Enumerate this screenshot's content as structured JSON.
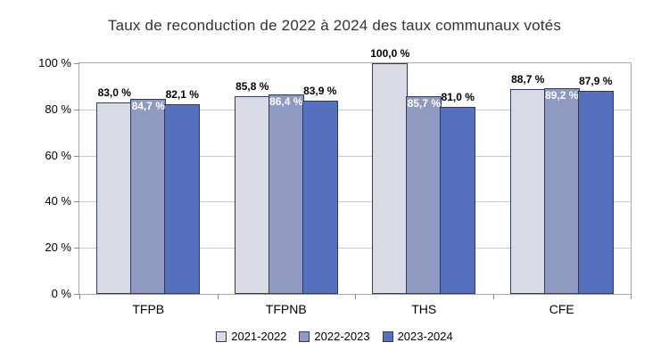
{
  "chart": {
    "title": "Taux de reconduction de 2022 à 2024 des taux communaux votés"
  },
  "chart_data": {
    "type": "bar",
    "title": "Taux de reconduction de 2022 à 2024 des taux communaux votés",
    "categories": [
      "TFPB",
      "TFPNB",
      "THS",
      "CFE"
    ],
    "series": [
      {
        "name": "2021-2022",
        "color": "#d8dbe6",
        "values": [
          83.0,
          85.8,
          100.0,
          88.7
        ],
        "labels": [
          "83,0 %",
          "85,8 %",
          "100,0 %",
          "88,7 %"
        ],
        "label_color": "#000000",
        "label_position": "above"
      },
      {
        "name": "2022-2023",
        "color": "#8e9ac1",
        "values": [
          84.7,
          86.4,
          85.7,
          89.2
        ],
        "labels": [
          "84,7 %",
          "86,4 %",
          "85,7 %",
          "89,2 %"
        ],
        "label_color": "#ffffff",
        "label_position": "inside-top"
      },
      {
        "name": "2023-2024",
        "color": "#5571bd",
        "values": [
          82.1,
          83.9,
          81.0,
          87.9
        ],
        "labels": [
          "82,1 %",
          "83,9 %",
          "81,0 %",
          "87,9 %"
        ],
        "label_color": "#000000",
        "label_position": "above"
      }
    ],
    "xlabel": "",
    "ylabel": "",
    "ylim": [
      0,
      100
    ],
    "yticks": [
      {
        "value": 0,
        "label": "0 %"
      },
      {
        "value": 20,
        "label": "20 %"
      },
      {
        "value": 40,
        "label": "40 %"
      },
      {
        "value": 60,
        "label": "60 %"
      },
      {
        "value": 80,
        "label": "80 %"
      },
      {
        "value": 100,
        "label": "100 %"
      }
    ],
    "grid": true,
    "legend_position": "bottom",
    "bar_border_color": "#2e3a5e"
  }
}
